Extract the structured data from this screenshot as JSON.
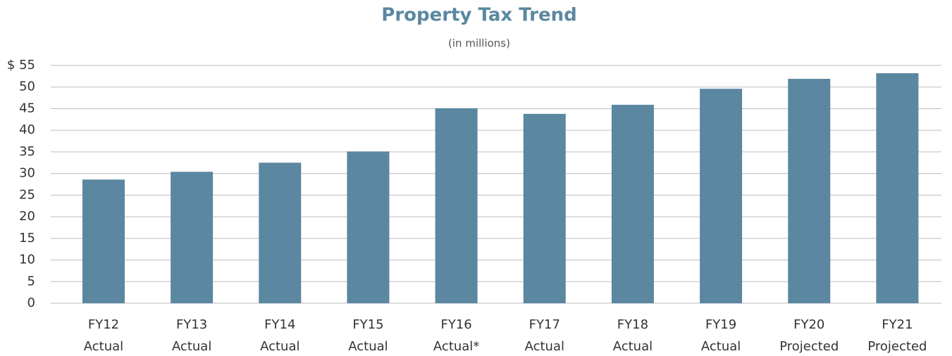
{
  "chart_data": {
    "type": "bar",
    "title": "Property Tax Trend",
    "subtitle": "(in millions)",
    "categories": [
      [
        "FY12",
        "Actual"
      ],
      [
        "FY13",
        "Actual"
      ],
      [
        "FY14",
        "Actual"
      ],
      [
        "FY15",
        "Actual"
      ],
      [
        "FY16",
        "Actual*"
      ],
      [
        "FY17",
        "Actual"
      ],
      [
        "FY18",
        "Actual"
      ],
      [
        "FY19",
        "Actual"
      ],
      [
        "FY20",
        "Projected"
      ],
      [
        "FY21",
        "Projected"
      ]
    ],
    "values": [
      28.6,
      30.4,
      32.5,
      35.1,
      45.1,
      43.8,
      45.9,
      49.6,
      51.9,
      53.2
    ],
    "color": "#5b87a0",
    "ylim": [
      0,
      55
    ],
    "yticks": [
      0,
      5,
      10,
      15,
      20,
      25,
      30,
      35,
      40,
      45,
      50,
      {
        "value": 55,
        "label": "$ 55"
      }
    ],
    "grid": true
  }
}
